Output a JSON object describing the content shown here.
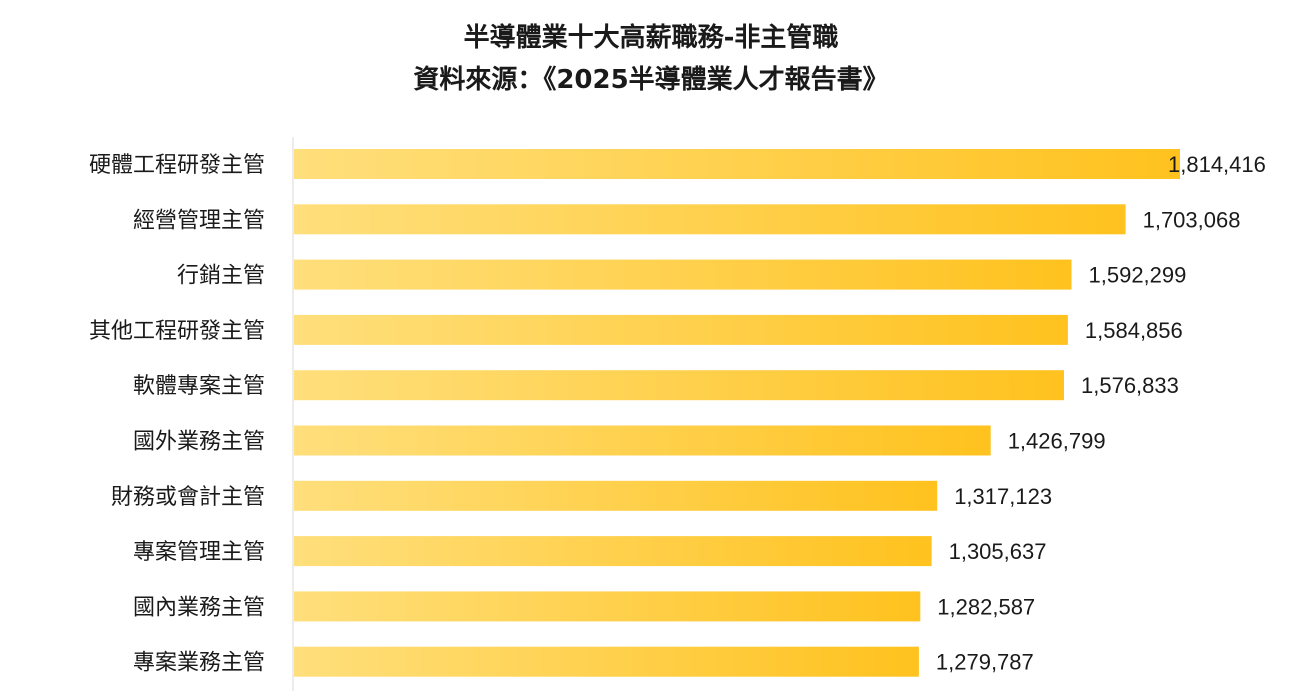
{
  "chart_data": {
    "type": "bar",
    "orientation": "horizontal",
    "title": "半導體業十大高薪職務-非主管職",
    "subtitle": "資料來源：《2025半導體業人才報告書》",
    "categories": [
      "硬體工程研發主管",
      "經營管理主管",
      "行銷主管",
      "其他工程研發主管",
      "軟體專案主管",
      "國外業務主管",
      "財務或會計主管",
      "專案管理主管",
      "國內業務主管",
      "專案業務主管"
    ],
    "values": [
      1814416,
      1703068,
      1592299,
      1584856,
      1576833,
      1426799,
      1317123,
      1305637,
      1282587,
      1279787
    ],
    "value_labels": [
      "1,814,416",
      "1,703,068",
      "1,592,299",
      "1,584,856",
      "1,576,833",
      "1,426,799",
      "1,317,123",
      "1,305,637",
      "1,282,587",
      "1,279,787"
    ],
    "xlim": [
      0,
      1814416
    ],
    "grid": false,
    "legend": "none",
    "colors": {
      "bar_start": "#FFDF7C",
      "bar_end": "#FFC21E",
      "axis": "#d9d9d9",
      "text": "#1a1a1a"
    }
  }
}
